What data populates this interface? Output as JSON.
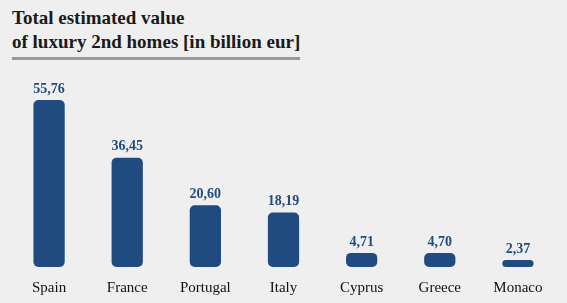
{
  "chart_data": {
    "type": "bar",
    "title": "Total estimated value\nof luxury 2nd homes [in billion eur]",
    "categories": [
      "Spain",
      "France",
      "Portugal",
      "Italy",
      "Cyprus",
      "Greece",
      "Monaco"
    ],
    "values": [
      55.76,
      36.45,
      20.6,
      18.19,
      4.71,
      4.7,
      2.37
    ],
    "value_labels": [
      "55,76",
      "36,45",
      "20,60",
      "18,19",
      "4,71",
      "4,70",
      "2,37"
    ],
    "color": "#1f4b80",
    "data_labels": true,
    "tick_labels": "x",
    "grid": false
  }
}
